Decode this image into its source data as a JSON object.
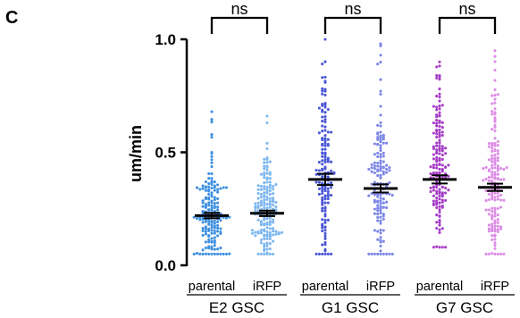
{
  "panel_label": "C",
  "chart_data": {
    "type": "scatter",
    "title": "",
    "xlabel": "",
    "ylabel": "um/min",
    "ylim": [
      0,
      1.0
    ],
    "yticks": [
      "0.0",
      "0.5",
      "1.0"
    ],
    "grid": false,
    "groups": [
      {
        "name": "E2 GSC",
        "conditions": [
          {
            "name": "parental",
            "color": "#3d8fe0",
            "mean": 0.22,
            "sem": 0.012,
            "n": 170,
            "min": 0.05,
            "max": 0.68
          },
          {
            "name": "iRFP",
            "color": "#7eb7ee",
            "mean": 0.23,
            "sem": 0.012,
            "n": 170,
            "min": 0.05,
            "max": 0.66
          }
        ],
        "significance": "ns"
      },
      {
        "name": "G1 GSC",
        "conditions": [
          {
            "name": "parental",
            "color": "#4a56d6",
            "mean": 0.38,
            "sem": 0.025,
            "n": 150,
            "min": 0.05,
            "max": 1.0
          },
          {
            "name": "iRFP",
            "color": "#7b86e6",
            "mean": 0.34,
            "sem": 0.018,
            "n": 150,
            "min": 0.05,
            "max": 0.98
          }
        ],
        "significance": "ns"
      },
      {
        "name": "G7 GSC",
        "conditions": [
          {
            "name": "parental",
            "color": "#a63dc6",
            "mean": 0.38,
            "sem": 0.018,
            "n": 160,
            "min": 0.08,
            "max": 0.9
          },
          {
            "name": "iRFP",
            "color": "#dc8ce6",
            "mean": 0.345,
            "sem": 0.016,
            "n": 160,
            "min": 0.05,
            "max": 0.95
          }
        ],
        "significance": "ns"
      }
    ]
  }
}
